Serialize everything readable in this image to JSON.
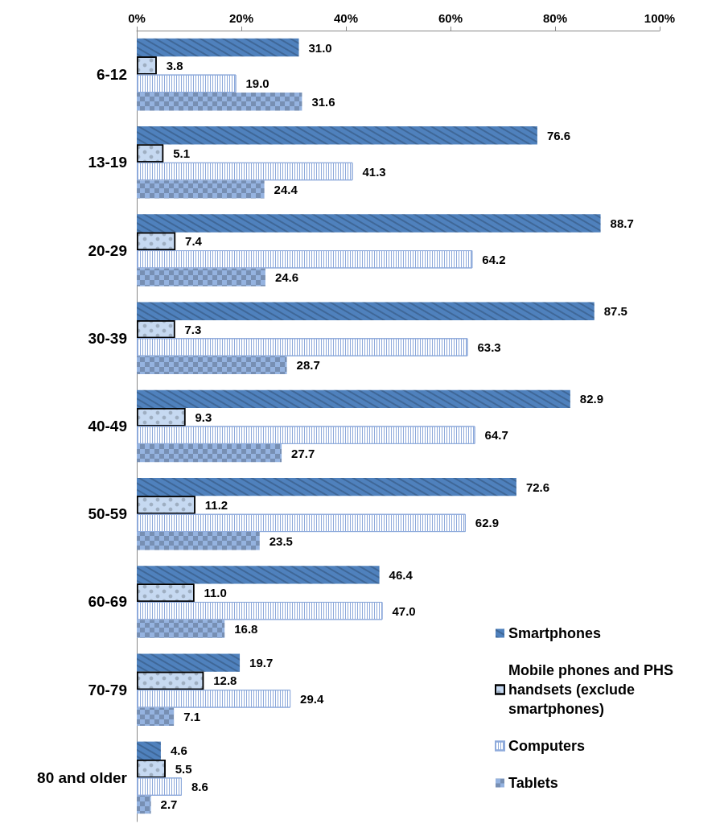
{
  "chart_data": {
    "type": "bar",
    "orientation": "horizontal",
    "categories": [
      "6-12",
      "13-19",
      "20-29",
      "30-39",
      "40-49",
      "50-59",
      "60-69",
      "70-79",
      "80 and older"
    ],
    "series": [
      {
        "name": "Smartphones",
        "color": "#4f81bd",
        "values": [
          31.0,
          76.6,
          88.7,
          87.5,
          82.9,
          72.6,
          46.4,
          19.7,
          4.6
        ],
        "value_labels": [
          "31.0",
          "76.6",
          "88.7",
          "87.5",
          "82.9",
          "72.6",
          "46.4",
          "19.7",
          "4.6"
        ]
      },
      {
        "name": "Mobile phones and PHS handsets (exclude smartphones)",
        "color": "#c6d9f1",
        "values": [
          3.8,
          5.1,
          7.4,
          7.3,
          9.3,
          11.2,
          11.0,
          12.8,
          5.5
        ],
        "value_labels": [
          "3.8",
          "5.1",
          "7.4",
          "7.3",
          "9.3",
          "11.2",
          "11.0",
          "12.8",
          "5.5"
        ]
      },
      {
        "name": "Computers",
        "color": "#8eaadb",
        "values": [
          19.0,
          41.3,
          64.2,
          63.3,
          64.7,
          62.9,
          47.0,
          29.4,
          8.6
        ],
        "value_labels": [
          "19.0",
          "41.3",
          "64.2",
          "63.3",
          "64.7",
          "62.9",
          "47.0",
          "29.4",
          "8.6"
        ]
      },
      {
        "name": "Tablets",
        "color": "#95b3e0",
        "values": [
          31.6,
          24.4,
          24.6,
          28.7,
          27.7,
          23.5,
          16.8,
          7.1,
          2.7
        ],
        "value_labels": [
          "31.6",
          "24.4",
          "24.6",
          "28.7",
          "27.7",
          "23.5",
          "16.8",
          "7.1",
          "2.7"
        ]
      }
    ],
    "xlim": [
      0,
      100
    ],
    "xticks": [
      {
        "value": 0,
        "label": "0%"
      },
      {
        "value": 20,
        "label": "20%"
      },
      {
        "value": 40,
        "label": "40%"
      },
      {
        "value": 60,
        "label": "60%"
      },
      {
        "value": 80,
        "label": "80%"
      },
      {
        "value": 100,
        "label": "100%"
      }
    ],
    "grid": false,
    "legend": "bottom right"
  }
}
